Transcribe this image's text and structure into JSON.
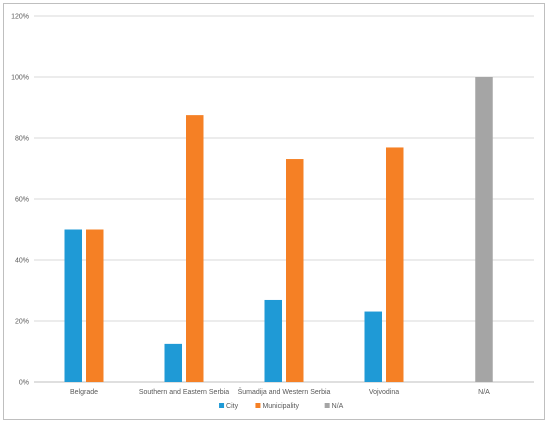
{
  "chart_data": {
    "type": "bar",
    "title": "",
    "xlabel": "",
    "ylabel": "",
    "categories": [
      "Belgrade",
      "Southern and Eastern Serbia",
      "Šumadija and Western Serbia",
      "Vojvodina",
      "N/A"
    ],
    "series": [
      {
        "name": "City",
        "color": "#1f9ad6",
        "values": [
          50,
          12.5,
          26.9,
          23.1,
          0
        ]
      },
      {
        "name": "Municipality",
        "color": "#f58025",
        "values": [
          50,
          87.5,
          73.1,
          76.9,
          0
        ]
      },
      {
        "name": "N/A",
        "color": "#a5a5a5",
        "values": [
          0,
          0,
          0,
          0,
          100
        ]
      }
    ],
    "ylim": [
      0,
      120
    ],
    "yticks": [
      0,
      20,
      40,
      60,
      80,
      100,
      120
    ],
    "ytick_labels": [
      "0%",
      "20%",
      "40%",
      "60%",
      "80%",
      "100%",
      "120%"
    ],
    "grid": true,
    "legend_position": "bottom"
  }
}
